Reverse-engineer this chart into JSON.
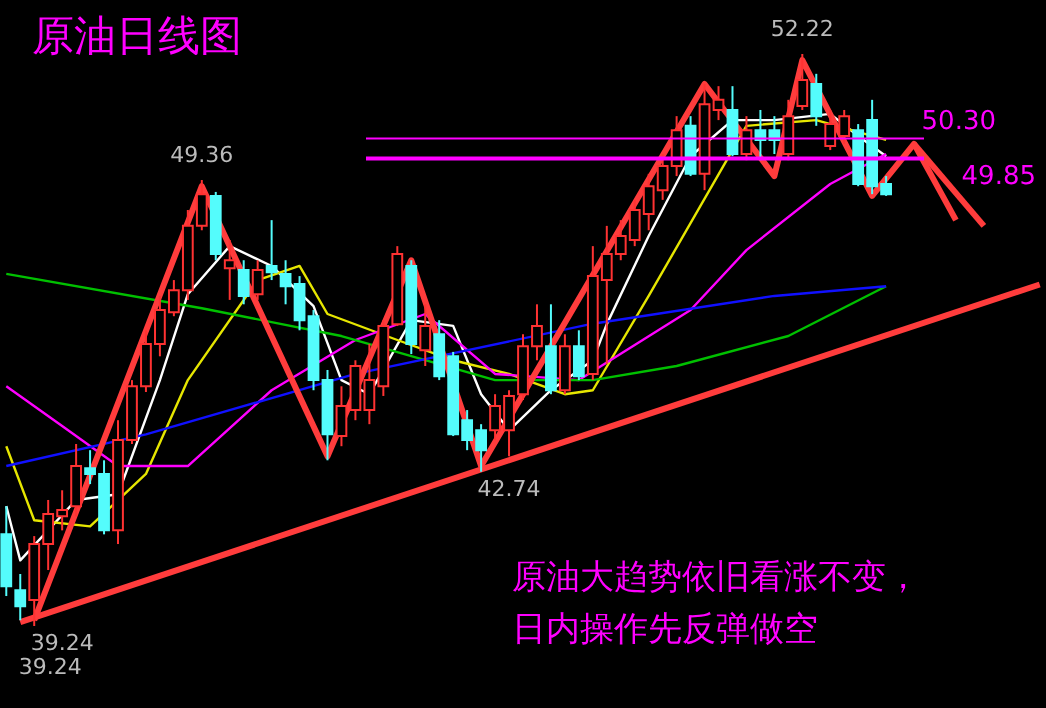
{
  "chart_data": {
    "type": "candlestick",
    "title": "原油日线图",
    "categories": [
      null,
      null,
      null,
      null,
      null,
      null,
      null,
      null,
      null,
      null,
      null,
      null,
      null,
      null,
      null,
      null,
      null,
      null,
      null,
      null,
      null,
      null,
      null,
      null,
      null,
      null,
      null,
      null,
      null,
      null,
      null,
      null,
      null,
      null,
      null,
      null,
      null,
      null,
      null,
      null,
      null,
      null,
      null,
      null,
      null,
      null,
      null,
      null,
      null,
      null,
      null,
      null,
      null,
      null,
      null,
      null,
      null,
      null,
      null,
      null,
      null,
      null,
      null,
      null,
      null,
      null,
      null,
      null,
      null,
      null,
      null,
      null,
      null,
      null,
      null
    ],
    "ohlc": [
      [
        41.32,
        41.96,
        39.92,
        40.14
      ],
      [
        40.05,
        40.42,
        39.37,
        39.69
      ],
      [
        39.83,
        41.28,
        39.24,
        41.1
      ],
      [
        41.1,
        42.1,
        40.51,
        41.78
      ],
      [
        41.73,
        42.32,
        41.41,
        41.87
      ],
      [
        41.96,
        43.37,
        41.73,
        42.87
      ],
      [
        42.82,
        43.23,
        42.46,
        42.69
      ],
      [
        42.69,
        43.0,
        41.32,
        41.41
      ],
      [
        41.41,
        43.91,
        41.1,
        43.46
      ],
      [
        43.46,
        44.82,
        43.37,
        44.68
      ],
      [
        44.68,
        45.95,
        44.55,
        45.64
      ],
      [
        45.64,
        46.73,
        45.36,
        46.41
      ],
      [
        46.36,
        47.09,
        46.27,
        46.86
      ],
      [
        46.86,
        48.68,
        46.64,
        48.32
      ],
      [
        48.32,
        49.36,
        48.22,
        49.04
      ],
      [
        49.0,
        49.09,
        47.54,
        47.68
      ],
      [
        47.36,
        48.0,
        46.64,
        47.54
      ],
      [
        47.32,
        47.54,
        46.54,
        46.73
      ],
      [
        46.77,
        47.54,
        46.64,
        47.32
      ],
      [
        47.41,
        48.45,
        47.09,
        47.27
      ],
      [
        47.23,
        47.54,
        46.54,
        46.95
      ],
      [
        47.0,
        47.18,
        45.95,
        46.18
      ],
      [
        46.27,
        46.41,
        44.59,
        44.82
      ],
      [
        44.82,
        45.05,
        43.0,
        43.59
      ],
      [
        43.55,
        44.68,
        43.32,
        44.23
      ],
      [
        44.14,
        45.27,
        43.91,
        45.14
      ],
      [
        44.14,
        45.64,
        43.82,
        44.82
      ],
      [
        44.68,
        46.18,
        44.46,
        46.05
      ],
      [
        46.09,
        47.86,
        46.05,
        47.68
      ],
      [
        47.41,
        47.54,
        45.41,
        45.64
      ],
      [
        45.5,
        46.54,
        45.14,
        46.05
      ],
      [
        45.86,
        46.18,
        44.82,
        44.91
      ],
      [
        45.36,
        45.46,
        43.55,
        43.59
      ],
      [
        43.91,
        44.14,
        43.23,
        43.46
      ],
      [
        43.68,
        43.82,
        42.74,
        43.23
      ],
      [
        43.68,
        44.5,
        43.46,
        44.23
      ],
      [
        43.68,
        44.59,
        43.09,
        44.46
      ],
      [
        44.5,
        45.86,
        44.37,
        45.59
      ],
      [
        45.59,
        46.54,
        45.27,
        46.05
      ],
      [
        45.59,
        46.54,
        44.5,
        44.59
      ],
      [
        44.59,
        45.86,
        44.5,
        45.59
      ],
      [
        45.59,
        45.95,
        44.82,
        44.91
      ],
      [
        44.96,
        47.86,
        44.82,
        47.18
      ],
      [
        47.09,
        48.32,
        45.18,
        47.68
      ],
      [
        47.68,
        48.45,
        47.54,
        48.09
      ],
      [
        48.0,
        48.91,
        47.86,
        48.68
      ],
      [
        48.59,
        49.5,
        48.22,
        49.22
      ],
      [
        49.13,
        49.95,
        48.91,
        49.68
      ],
      [
        49.68,
        50.81,
        49.45,
        50.49
      ],
      [
        50.59,
        50.81,
        49.45,
        49.5
      ],
      [
        49.5,
        51.54,
        49.13,
        51.08
      ],
      [
        50.95,
        51.49,
        50.72,
        51.18
      ],
      [
        50.95,
        51.49,
        49.9,
        49.95
      ],
      [
        49.95,
        50.81,
        49.81,
        50.49
      ],
      [
        50.49,
        50.95,
        49.81,
        50.27
      ],
      [
        50.49,
        50.81,
        49.95,
        50.27
      ],
      [
        49.95,
        51.18,
        49.81,
        50.81
      ],
      [
        51.04,
        52.22,
        50.95,
        51.63
      ],
      [
        51.54,
        51.77,
        50.59,
        50.81
      ],
      [
        50.13,
        50.95,
        50.04,
        50.63
      ],
      [
        50.36,
        50.95,
        50.18,
        50.81
      ],
      [
        50.49,
        50.63,
        49.22,
        49.27
      ],
      [
        50.72,
        51.18,
        49.04,
        49.22
      ],
      [
        49.27,
        49.45,
        49.0,
        49.04
      ],
      null,
      null,
      null,
      null,
      null,
      null,
      null,
      null,
      null,
      null,
      null
    ],
    "series": [
      {
        "type": "line",
        "color": "#ffffff",
        "values": [
          41.96,
          40.73,
          null,
          null,
          null,
          42.1,
          null,
          null,
          42.23,
          null,
          null,
          44.82,
          null,
          46.77,
          null,
          null,
          47.86,
          null,
          null,
          47.41,
          null,
          null,
          46.5,
          null,
          44.82,
          null,
          44.5,
          null,
          null,
          46.18,
          null,
          null,
          46.05,
          null,
          44.5,
          null,
          43.68,
          null,
          null,
          44.59,
          null,
          null,
          45.27,
          46.09,
          null,
          null,
          48.09,
          null,
          null,
          49.9,
          null,
          null,
          50.72,
          null,
          null,
          50.72,
          null,
          null,
          null,
          50.86,
          null,
          50.36,
          null,
          49.9,
          null,
          null,
          null,
          null,
          null,
          null,
          null,
          null,
          null,
          null,
          null
        ]
      },
      {
        "type": "line",
        "color": "#e6e600",
        "values": [
          43.32,
          null,
          41.64,
          null,
          null,
          null,
          41.5,
          null,
          null,
          null,
          42.69,
          null,
          null,
          44.82,
          null,
          null,
          null,
          null,
          47.09,
          null,
          null,
          47.41,
          null,
          46.32,
          null,
          null,
          null,
          null,
          45.73,
          null,
          null,
          null,
          45.27,
          null,
          null,
          null,
          44.96,
          null,
          null,
          null,
          44.5,
          null,
          44.59,
          null,
          null,
          null,
          46.73,
          null,
          null,
          null,
          null,
          null,
          null,
          50.59,
          null,
          null,
          null,
          null,
          50.72,
          null,
          null,
          null,
          null,
          50.27,
          null,
          null,
          null,
          null,
          null,
          null,
          null,
          null,
          null,
          null,
          null
        ]
      },
      {
        "type": "line",
        "color": "#ff00ff",
        "values": [
          44.68,
          null,
          null,
          null,
          43.78,
          null,
          null,
          null,
          42.87,
          null,
          null,
          null,
          null,
          42.87,
          null,
          null,
          null,
          null,
          null,
          44.59,
          null,
          null,
          null,
          null,
          null,
          45.73,
          null,
          null,
          null,
          null,
          46.32,
          null,
          null,
          null,
          null,
          44.96,
          null,
          null,
          null,
          null,
          null,
          44.82,
          null,
          null,
          null,
          null,
          null,
          null,
          null,
          46.41,
          null,
          null,
          null,
          47.77,
          null,
          null,
          null,
          null,
          null,
          49.27,
          null,
          null,
          null,
          49.95,
          null,
          null,
          null,
          null,
          null,
          null,
          null,
          null,
          null,
          null,
          null
        ]
      },
      {
        "type": "line",
        "color": "#00c000",
        "values": [
          47.23,
          null,
          null,
          null,
          null,
          null,
          null,
          null,
          null,
          null,
          null,
          null,
          null,
          null,
          46.45,
          null,
          null,
          null,
          null,
          null,
          null,
          null,
          null,
          null,
          45.82,
          null,
          null,
          null,
          null,
          null,
          null,
          null,
          null,
          null,
          null,
          44.82,
          null,
          null,
          null,
          null,
          null,
          null,
          44.82,
          null,
          null,
          null,
          null,
          null,
          45.14,
          null,
          null,
          null,
          null,
          null,
          null,
          null,
          45.82,
          null,
          null,
          null,
          null,
          null,
          null,
          46.95,
          null,
          null,
          null,
          null,
          null,
          null,
          null,
          null,
          null,
          null,
          null
        ]
      },
      {
        "type": "line",
        "color": "#1010ff",
        "values": [
          42.87,
          null,
          null,
          null,
          null,
          null,
          null,
          null,
          null,
          null,
          43.59,
          null,
          null,
          null,
          null,
          null,
          null,
          null,
          null,
          null,
          null,
          null,
          null,
          null,
          null,
          44.96,
          null,
          null,
          null,
          null,
          null,
          null,
          null,
          null,
          null,
          null,
          null,
          null,
          null,
          null,
          null,
          null,
          46.1,
          null,
          null,
          null,
          null,
          null,
          null,
          null,
          null,
          null,
          null,
          null,
          null,
          46.73,
          null,
          null,
          null,
          null,
          null,
          null,
          null,
          46.95,
          null,
          null,
          null,
          null,
          null,
          null,
          null,
          null,
          null,
          null,
          null
        ]
      },
      {
        "type": "line",
        "color": "#ff3c3c",
        "values": [
          null,
          39.33,
          null,
          null,
          null,
          null,
          null,
          null,
          null,
          null,
          null,
          null,
          null,
          null,
          null,
          null,
          null,
          null,
          null,
          null,
          null,
          null,
          null,
          null,
          null,
          null,
          null,
          null,
          null,
          null,
          null,
          null,
          null,
          null,
          null,
          null,
          null,
          null,
          null,
          null,
          null,
          null,
          null,
          null,
          null,
          null,
          null,
          null,
          null,
          null,
          null,
          null,
          null,
          null,
          null,
          null,
          null,
          null,
          null,
          null,
          null,
          null,
          null,
          null,
          null,
          null,
          null,
          null,
          null,
          null,
          null,
          null,
          null,
          null,
          46.99
        ]
      },
      {
        "type": "line",
        "color": "#ff3c3c",
        "values": [
          null,
          null,
          39.37,
          null,
          null,
          null,
          null,
          null,
          null,
          null,
          null,
          null,
          null,
          null,
          49.22,
          null,
          null,
          null,
          null,
          null,
          null,
          null,
          null,
          43.09,
          null,
          null,
          null,
          null,
          null,
          47.54,
          null,
          null,
          null,
          null,
          42.87,
          null,
          null,
          null,
          null,
          null,
          null,
          null,
          null,
          null,
          null,
          null,
          null,
          null,
          null,
          null,
          51.54,
          null,
          null,
          null,
          null,
          49.45,
          null,
          52.08,
          null,
          null,
          null,
          null,
          49.0,
          null,
          null,
          50.18,
          null,
          null,
          48.45,
          null,
          null,
          null,
          null,
          null,
          null
        ]
      },
      {
        "type": "line",
        "color": "#ff3c3c",
        "values": [
          null,
          null,
          null,
          null,
          null,
          null,
          null,
          null,
          null,
          null,
          null,
          null,
          null,
          null,
          null,
          null,
          null,
          null,
          null,
          null,
          null,
          null,
          null,
          null,
          null,
          null,
          null,
          null,
          null,
          null,
          null,
          null,
          null,
          null,
          null,
          null,
          null,
          null,
          null,
          null,
          null,
          null,
          null,
          null,
          null,
          null,
          null,
          null,
          null,
          null,
          null,
          null,
          null,
          null,
          null,
          null,
          null,
          null,
          null,
          null,
          null,
          null,
          null,
          null,
          null,
          50.18,
          null,
          null,
          null,
          null,
          48.32,
          null,
          null,
          null,
          null
        ]
      }
    ],
    "ref_lines": [
      {
        "axis": "y",
        "value": 50.3,
        "label": "50.30",
        "color": "#ff00ff"
      },
      {
        "axis": "y",
        "value": 49.85,
        "label": "49.85",
        "color": "#ff00ff"
      }
    ],
    "annotations": [
      {
        "text": "52.22",
        "y": 52.22
      },
      {
        "text": "49.36",
        "y": 49.36
      },
      {
        "text": "42.74",
        "y": 42.74
      },
      "39.24",
      "39.24",
      "原油大趋势依旧看涨不变，",
      "日内操作先反弹做空"
    ],
    "tick_labels": false,
    "marker": "none",
    "line_style": "solid"
  }
}
